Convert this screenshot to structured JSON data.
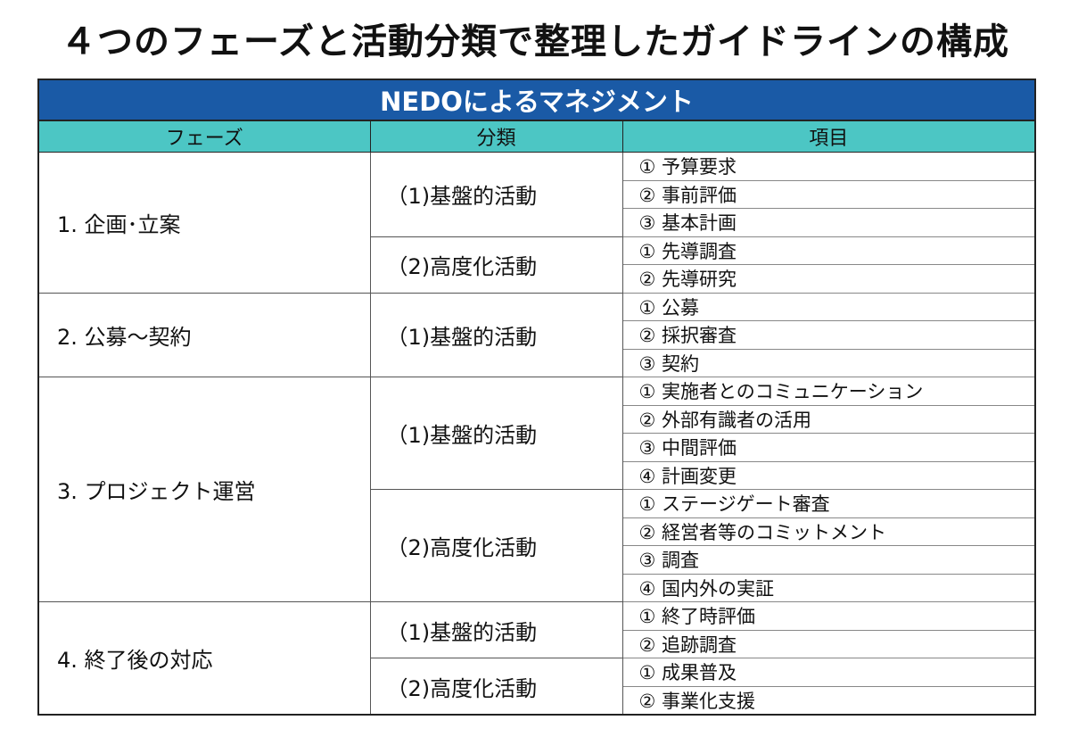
{
  "header": {
    "title": "４つのフェーズと活動分類で整理したガイドラインの構成"
  },
  "table": {
    "banner": "NEDOによるマネジメント",
    "columns": [
      "フェーズ",
      "分類",
      "項目"
    ],
    "phases": [
      {
        "label": "1. 企画･立案",
        "groups": [
          {
            "label": "（1)基盤的活動",
            "items": [
              "① 予算要求",
              "② 事前評価",
              "③ 基本計画"
            ]
          },
          {
            "label": "（2)高度化活動",
            "items": [
              "① 先導調査",
              "② 先導研究"
            ]
          }
        ]
      },
      {
        "label": "2. 公募～契約",
        "groups": [
          {
            "label": "（1)基盤的活動",
            "items": [
              "① 公募",
              "② 採択審査",
              "③ 契約"
            ]
          }
        ]
      },
      {
        "label": "3. プロジェクト運営",
        "groups": [
          {
            "label": "（1)基盤的活動",
            "items": [
              "① 実施者とのコミュニケーション",
              "② 外部有識者の活用",
              "③ 中間評価",
              "④ 計画変更"
            ]
          },
          {
            "label": "（2)高度化活動",
            "items": [
              "① ステージゲート審査",
              "② 経営者等のコミットメント",
              "③ 調査",
              "④ 国内外の実証"
            ]
          }
        ]
      },
      {
        "label": "4. 終了後の対応",
        "groups": [
          {
            "label": "（1)基盤的活動",
            "items": [
              "① 終了時評価",
              "② 追跡調査"
            ]
          },
          {
            "label": "（2)高度化活動",
            "items": [
              "① 成果普及",
              "② 事業化支援"
            ]
          }
        ]
      }
    ]
  }
}
